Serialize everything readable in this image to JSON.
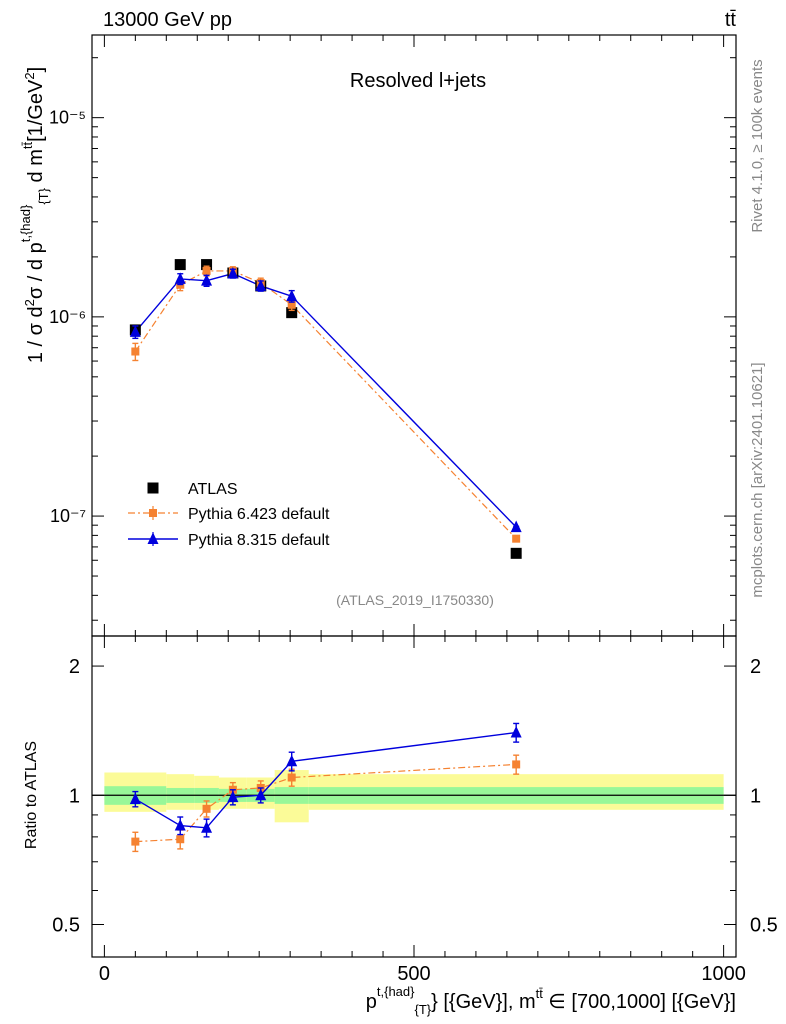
{
  "header": {
    "left": "13000 GeV pp",
    "right": "tt̄"
  },
  "side": {
    "rivet": "Rivet 4.1.0, ≥ 100k events",
    "mcplots": "mcplots.cern.ch [arXiv:2401.10621]"
  },
  "chart_data": [
    {
      "type": "scatter",
      "panel": "main",
      "title": "Resolved l+jets",
      "ylabel": "1 / σ d²σ / d p^{t,{had}}_{T} d m^{tt̄} [1/GeV²]",
      "yscale": "log",
      "xlim": [
        -20,
        1020
      ],
      "ylim": [
        2.5e-08,
        2.6e-05
      ],
      "yticks": [
        {
          "value": 1e-07,
          "label": "10⁻⁷"
        },
        {
          "value": 1e-06,
          "label": "10⁻⁶"
        },
        {
          "value": 1e-05,
          "label": "10⁻⁵"
        }
      ],
      "watermark": "(ATLAS_2019_I1750330)",
      "legend_position": "bottom-left",
      "series": [
        {
          "name": "ATLAS",
          "style": "square",
          "color": "#000000",
          "x": [
            50,
            122.5,
            165,
            207.5,
            252.5,
            302.5,
            665
          ],
          "values": [
            8.6e-07,
            1.83e-06,
            1.83e-06,
            1.66e-06,
            1.43e-06,
            1.05e-06,
            6.5e-08
          ]
        },
        {
          "name": "Pythia 6.423 default",
          "style": "square-dashdot",
          "color": "#f58231",
          "x": [
            50,
            122.5,
            165,
            207.5,
            252.5,
            302.5,
            665
          ],
          "values": [
            6.7e-07,
            1.45e-06,
            1.7e-06,
            1.7e-06,
            1.48e-06,
            1.15e-06,
            7.7e-08
          ],
          "errors": [
            5.5e-08,
            8e-08,
            8e-08,
            7e-08,
            7e-08,
            6e-08,
            5e-10
          ]
        },
        {
          "name": "Pythia 8.315 default",
          "style": "triangle-solid",
          "color": "#0000dd",
          "x": [
            50,
            122.5,
            165,
            207.5,
            252.5,
            302.5,
            665
          ],
          "values": [
            8.4e-07,
            1.55e-06,
            1.52e-06,
            1.65e-06,
            1.43e-06,
            1.27e-06,
            8.8e-08
          ],
          "errors": [
            5e-08,
            8e-08,
            8e-08,
            7e-08,
            7e-08,
            7e-08,
            6e-10
          ]
        }
      ]
    },
    {
      "type": "line",
      "panel": "ratio",
      "ylabel": "Ratio to ATLAS",
      "xlabel": "p^{t,{had}}_{T} [{GeV}], m^{tt̄} ∈ [700,1000] [{GeV}]",
      "yscale": "log",
      "xlim": [
        -20,
        1020
      ],
      "ylim": [
        0.42,
        2.35
      ],
      "yticks": [
        {
          "value": 0.5,
          "label": "0.5"
        },
        {
          "value": 1,
          "label": "1"
        },
        {
          "value": 2,
          "label": "2"
        }
      ],
      "xticks": [
        {
          "value": 0,
          "label": "0"
        },
        {
          "value": 500,
          "label": "500"
        },
        {
          "value": 1000,
          "label": "1000"
        }
      ],
      "bands": {
        "bin_edges": [
          0,
          100,
          145,
          185,
          230,
          275,
          330,
          1000
        ],
        "stat_lo": [
          0.95,
          0.96,
          0.96,
          0.965,
          0.965,
          0.955,
          0.955
        ],
        "stat_hi": [
          1.05,
          1.04,
          1.04,
          1.035,
          1.035,
          1.045,
          1.045
        ],
        "syst_lo": [
          0.915,
          0.925,
          0.925,
          0.93,
          0.93,
          0.865,
          0.925
        ],
        "syst_hi": [
          1.13,
          1.12,
          1.11,
          1.1,
          1.1,
          1.145,
          1.12
        ],
        "stat_color": "#98f798",
        "syst_color": "#fbfb98"
      },
      "series": [
        {
          "name": "Pythia 6.423 default",
          "color": "#f58231",
          "x": [
            50,
            122.5,
            165,
            207.5,
            252.5,
            302.5,
            665
          ],
          "values": [
            0.78,
            0.79,
            0.93,
            1.03,
            1.04,
            1.1,
            1.18
          ],
          "errors": [
            0.04,
            0.04,
            0.04,
            0.04,
            0.04,
            0.05,
            0.06
          ]
        },
        {
          "name": "Pythia 8.315 default",
          "color": "#0000dd",
          "x": [
            50,
            122.5,
            165,
            207.5,
            252.5,
            302.5,
            665
          ],
          "values": [
            0.98,
            0.85,
            0.84,
            0.99,
            1.0,
            1.2,
            1.4
          ],
          "errors": [
            0.04,
            0.04,
            0.04,
            0.04,
            0.04,
            0.06,
            0.07
          ]
        }
      ]
    }
  ]
}
